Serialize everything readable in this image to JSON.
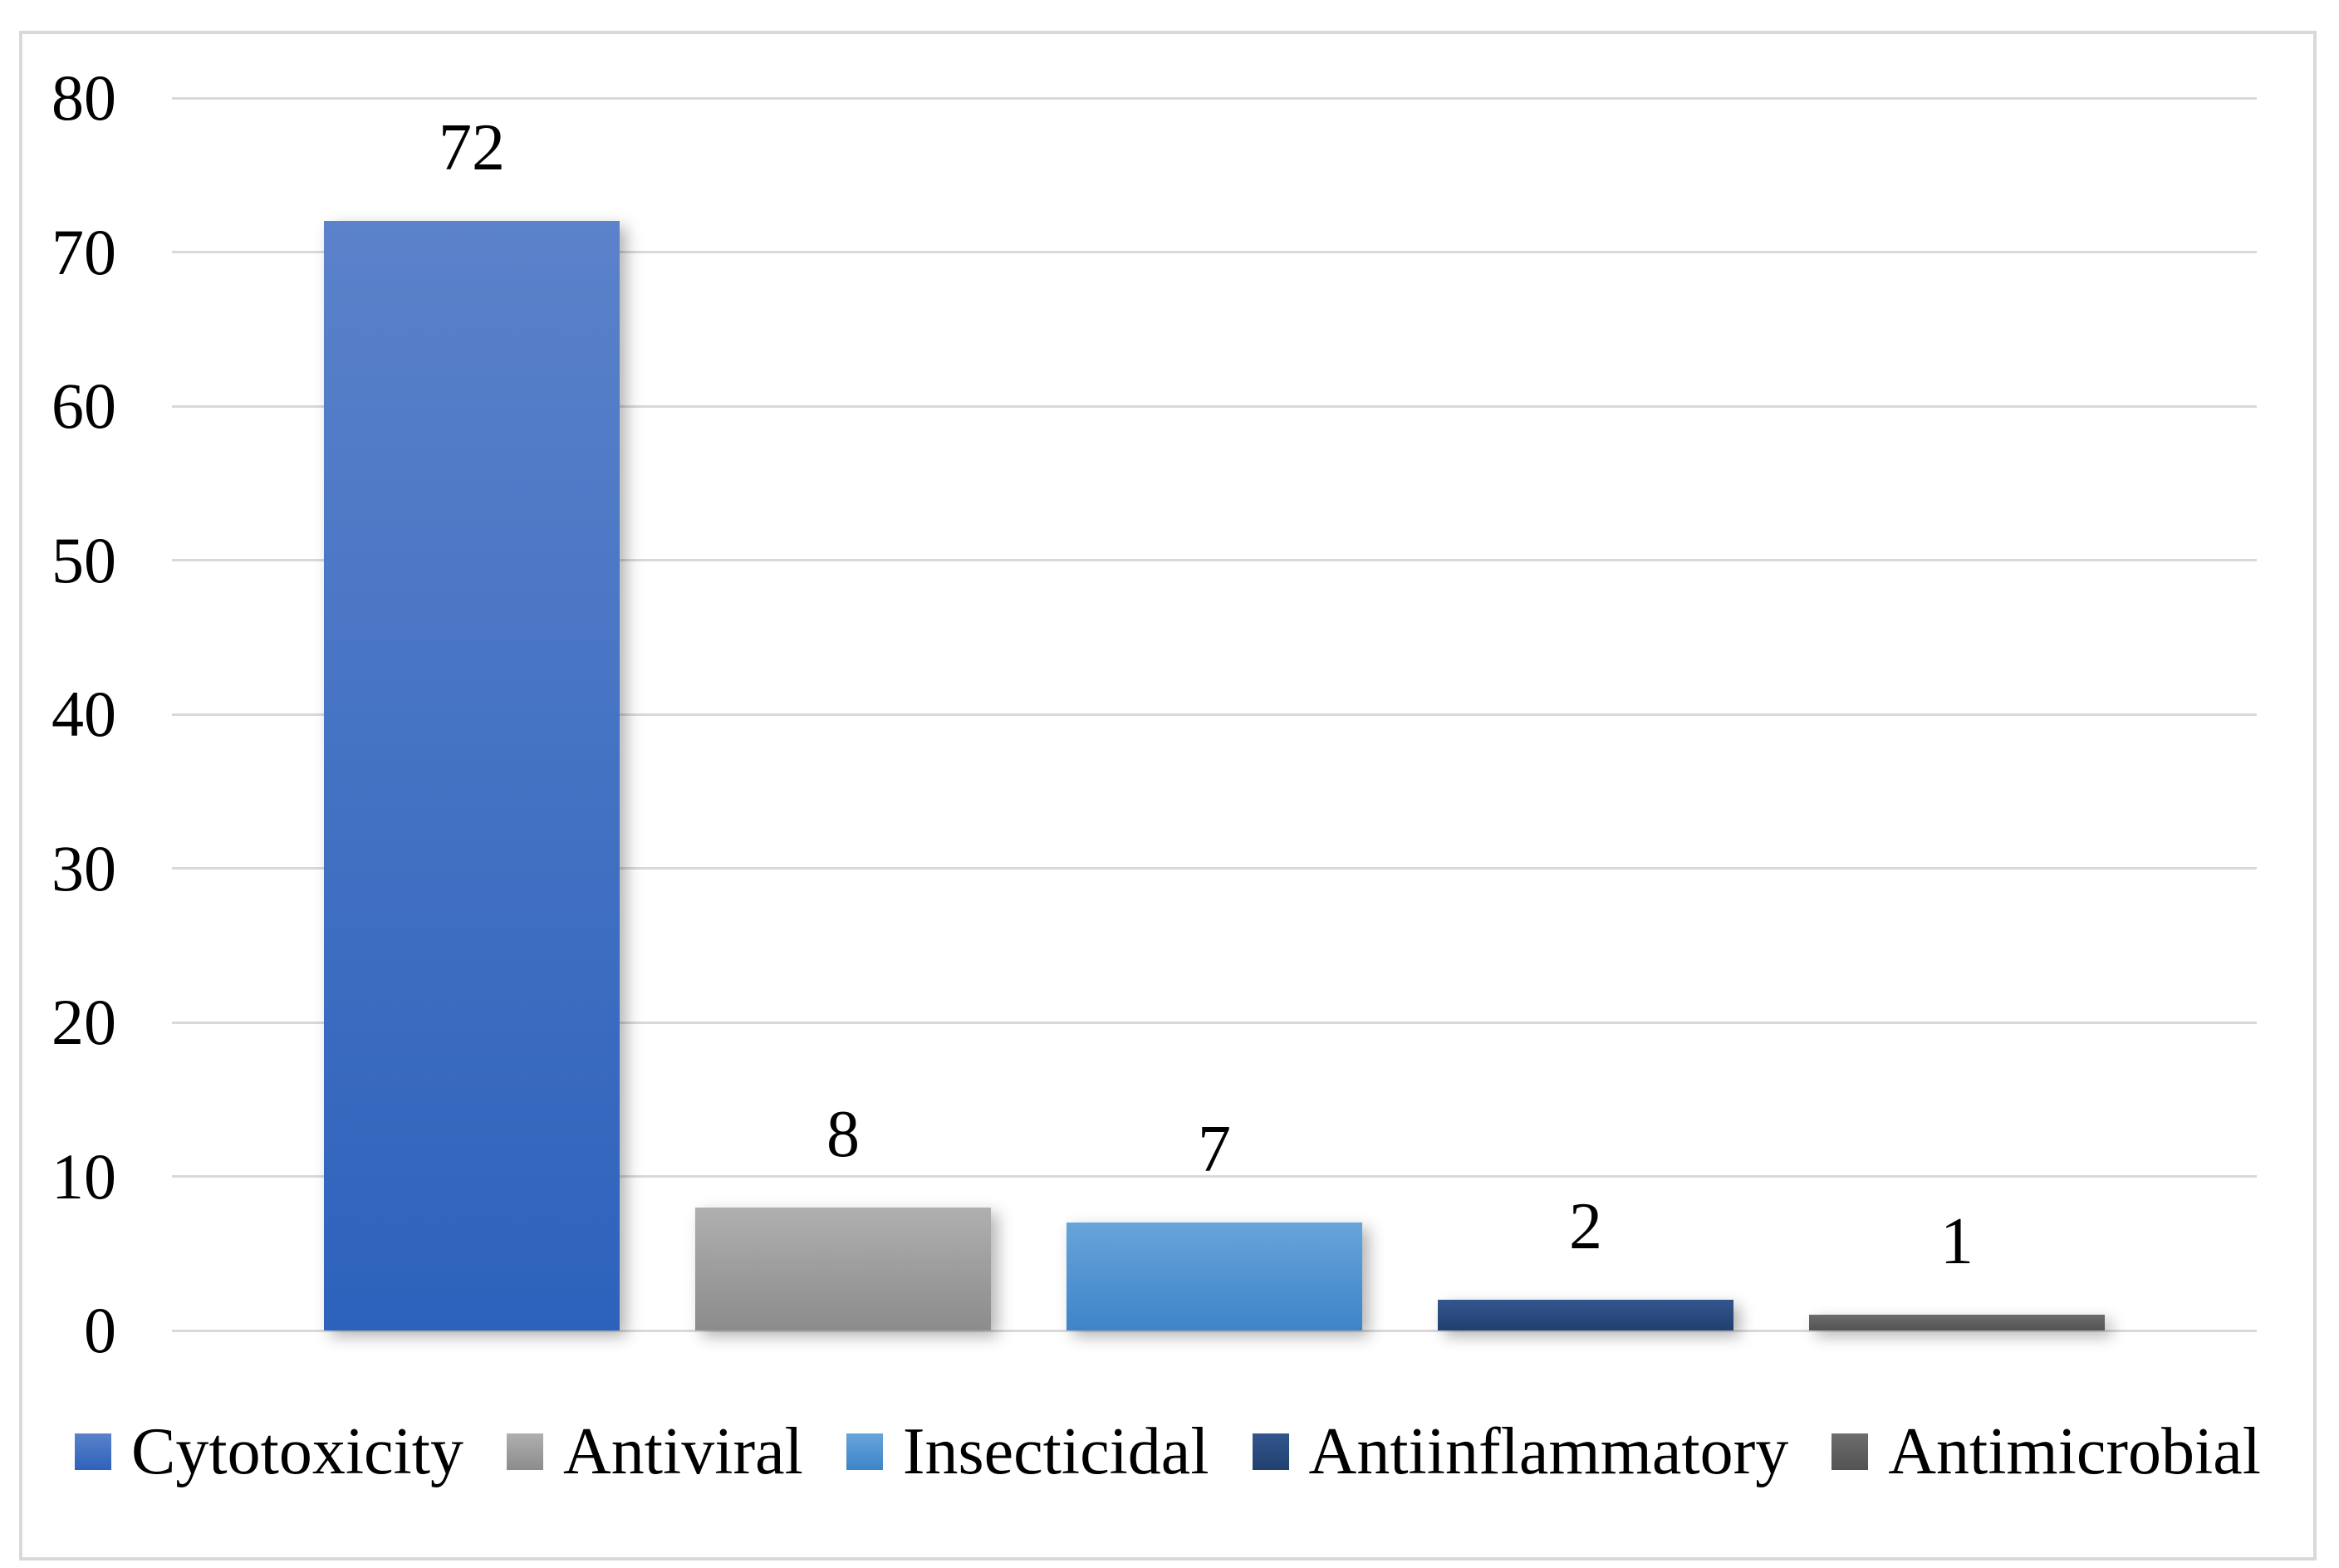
{
  "chart_data": {
    "type": "bar",
    "title": "",
    "xlabel": "",
    "ylabel": "",
    "categories": [
      "Cytotoxicity",
      "Antiviral",
      "Insecticidal",
      "Antiinflammatory",
      "Antimicrobial"
    ],
    "values": [
      72,
      8,
      7,
      2,
      1
    ],
    "data_labels": [
      "72",
      "8",
      "7",
      "2",
      "1"
    ],
    "ylim": [
      0,
      80
    ],
    "yticks": [
      0,
      10,
      20,
      30,
      40,
      50,
      60,
      70,
      80
    ],
    "grid": "horizontal",
    "legend_position": "bottom",
    "series_colors": [
      {
        "series": "Cytotoxicity",
        "gradient_top": "#5B82CA",
        "gradient_bottom": "#2D62BC"
      },
      {
        "series": "Antiviral",
        "gradient_top": "#AFAFAF",
        "gradient_bottom": "#8C8C8C"
      },
      {
        "series": "Insecticidal",
        "gradient_top": "#67A4DA",
        "gradient_bottom": "#3E84C8"
      },
      {
        "series": "Antiinflammatory",
        "gradient_top": "#33568E",
        "gradient_bottom": "#21406F"
      },
      {
        "series": "Antimicrobial",
        "gradient_top": "#6D6D6D",
        "gradient_bottom": "#535353"
      }
    ],
    "gridline_color": "#D9D9D9",
    "frame_border_color": "#D9D9D9",
    "text_color": "#000000"
  }
}
